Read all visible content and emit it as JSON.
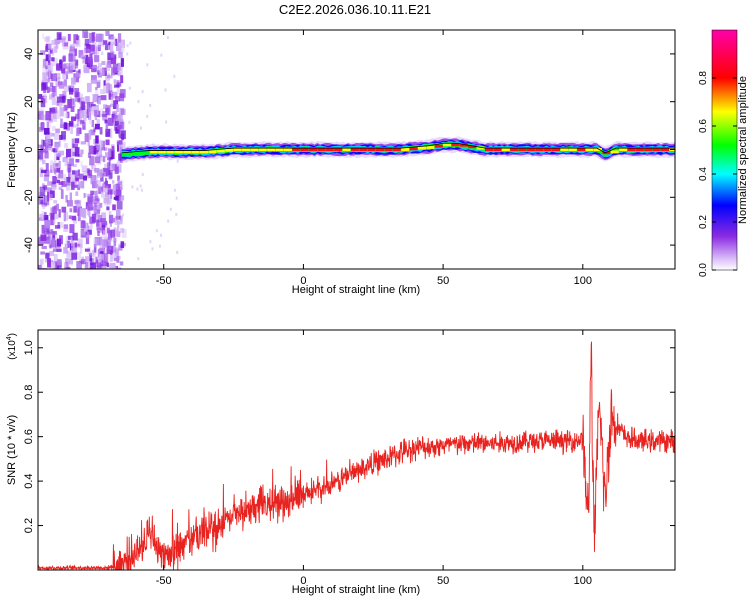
{
  "title": "C2E2.2026.036.10.11.E21",
  "chart_data": [
    {
      "type": "heatmap",
      "xlabel": "Height of straight line (km)",
      "ylabel": "Frequency (Hz)",
      "xlim": [
        -95,
        133
      ],
      "ylim": [
        -50,
        50
      ],
      "xticks": [
        -50,
        0,
        50,
        100
      ],
      "yticks": [
        -40,
        -20,
        0,
        20,
        40
      ],
      "colorbar": {
        "label": "Normalized spectral amplitude",
        "range": [
          0,
          1
        ],
        "ticks": [
          "0.0",
          "0.2",
          "0.4",
          "0.6",
          "0.8"
        ],
        "colors": [
          "#ffffff",
          "#8a2be2",
          "#0000ff",
          "#00ffff",
          "#00ff00",
          "#ffff00",
          "#ff0000",
          "#ff00aa"
        ]
      },
      "noise_region": {
        "x_from": -95,
        "x_to": -65,
        "freq_range": [
          -50,
          50
        ]
      },
      "track": {
        "x": [
          -65,
          -55,
          -45,
          -35,
          -25,
          -15,
          -5,
          5,
          15,
          25,
          35,
          45,
          50,
          55,
          65,
          75,
          85,
          95,
          105,
          108,
          112,
          120,
          133
        ],
        "freq": [
          -2,
          -1,
          -1,
          -1,
          0,
          0,
          0,
          0,
          0,
          0,
          0,
          1,
          2,
          2,
          0,
          0,
          0,
          0,
          0,
          -2,
          0,
          0,
          0
        ]
      },
      "grid": false
    },
    {
      "type": "line",
      "xlabel": "Height of straight line (km)",
      "ylabel": "SNR (10 * v/v)",
      "yscale_label": "(x10",
      "yscale_exp": "4",
      "xlim": [
        -95,
        133
      ],
      "ylim": [
        0,
        1.08
      ],
      "xticks": [
        -50,
        0,
        50,
        100
      ],
      "yticks": [
        "0.2",
        "0.4",
        "0.6",
        "0.8",
        "1.0"
      ],
      "series": [
        {
          "color": "#e8231f",
          "x": [
            -95,
            -80,
            -70,
            -65,
            -60,
            -55,
            -52,
            -48,
            -45,
            -40,
            -35,
            -30,
            -25,
            -20,
            -15,
            -10,
            -5,
            0,
            5,
            10,
            15,
            20,
            25,
            30,
            35,
            40,
            50,
            60,
            70,
            80,
            90,
            95,
            100,
            102,
            103,
            104,
            106,
            108,
            110,
            115,
            120,
            133
          ],
          "y": [
            0.01,
            0.01,
            0.01,
            0.03,
            0.08,
            0.16,
            0.1,
            0.07,
            0.09,
            0.14,
            0.16,
            0.2,
            0.24,
            0.26,
            0.29,
            0.3,
            0.32,
            0.33,
            0.36,
            0.38,
            0.42,
            0.45,
            0.48,
            0.5,
            0.53,
            0.55,
            0.56,
            0.57,
            0.57,
            0.58,
            0.58,
            0.58,
            0.59,
            0.2,
            1.05,
            0.1,
            0.75,
            0.3,
            0.7,
            0.6,
            0.58,
            0.58
          ]
        }
      ]
    }
  ]
}
